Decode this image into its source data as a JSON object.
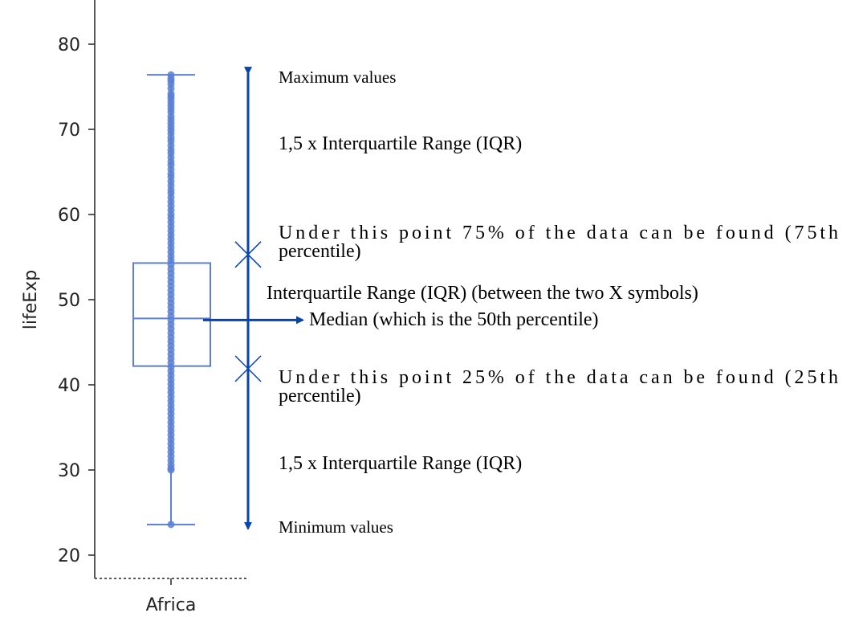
{
  "chart_data": {
    "type": "box",
    "categories": [
      "Africa"
    ],
    "ylabel": "lifeExp",
    "xlabel": "",
    "ylim": [
      19,
      86
    ],
    "yticks": [
      20,
      30,
      40,
      50,
      60,
      70,
      80
    ],
    "box": {
      "category": "Africa",
      "min": 23.6,
      "q1": 42.2,
      "median": 47.8,
      "q3": 54.3,
      "max": 76.4
    },
    "points": [
      76.4,
      76.0,
      75.7,
      75.3,
      74.8,
      74.2,
      73.9,
      73.6,
      73.2,
      72.8,
      72.4,
      72.0,
      71.5,
      71.1,
      70.7,
      70.3,
      69.9,
      69.5,
      69.0,
      68.6,
      68.1,
      67.6,
      67.2,
      66.7,
      66.2,
      65.8,
      65.3,
      64.8,
      64.4,
      63.9,
      63.4,
      62.9,
      62.5,
      62.0,
      61.5,
      61.0,
      60.5,
      60.0,
      59.6,
      59.1,
      58.6,
      58.1,
      57.6,
      57.1,
      56.6,
      56.1,
      55.6,
      55.1,
      54.6,
      54.1,
      53.6,
      53.1,
      52.6,
      52.1,
      51.6,
      51.1,
      50.6,
      50.1,
      49.6,
      49.1,
      48.6,
      48.1,
      47.6,
      47.1,
      46.6,
      46.1,
      45.6,
      45.1,
      44.6,
      44.1,
      43.6,
      43.1,
      42.6,
      42.1,
      41.6,
      41.1,
      40.6,
      40.1,
      39.6,
      39.1,
      38.6,
      38.1,
      37.6,
      37.1,
      36.6,
      36.1,
      35.6,
      35.1,
      34.6,
      34.1,
      33.6,
      33.1,
      32.6,
      32.1,
      31.6,
      31.1,
      30.6,
      30.2,
      30.0,
      23.6
    ],
    "color": "#5b7fd6",
    "annotation_color": "#0645ad",
    "annotations": {
      "max_label": "Maximum values",
      "iqr_upper_label": "1,5 x Interquartile Range (IQR)",
      "q3_line1": "Under this point 75% of the data can be found (75th",
      "q3_line2": "percentile)",
      "iqr_label": "Interquartile Range (IQR) (between the two X symbols)",
      "median_label": "Median (which is the 50th percentile)",
      "q1_line1": "Under this point 25% of the data can be found (25th",
      "q1_line2": "percentile)",
      "iqr_lower_label": "1,5 x Interquartile Range (IQR)",
      "min_label": "Minimum values"
    }
  }
}
